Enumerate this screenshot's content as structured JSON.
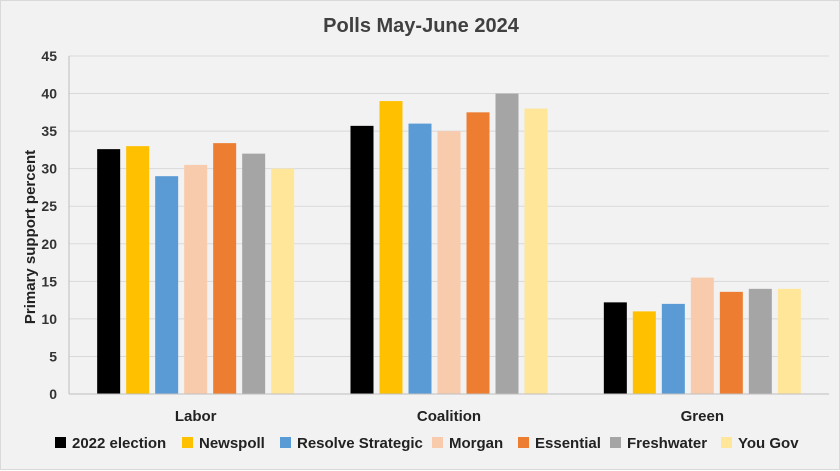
{
  "chart_data": {
    "type": "bar",
    "title": "Polls May-June 2024",
    "xlabel": "",
    "ylabel": "Primary support percent",
    "ylim": [
      0,
      45
    ],
    "yticks": [
      "0",
      "5",
      "10",
      "15",
      "20",
      "25",
      "30",
      "35",
      "40",
      "45"
    ],
    "grid": true,
    "legend_position": "bottom",
    "categories": [
      "Labor",
      "Coalition",
      "Green"
    ],
    "series": [
      {
        "name": "2022 election",
        "color": "#000000",
        "values": [
          32.6,
          35.7,
          12.2
        ]
      },
      {
        "name": "Newspoll",
        "color": "#ffc000",
        "values": [
          33,
          39,
          11
        ]
      },
      {
        "name": "Resolve Strategic",
        "color": "#5b9bd5",
        "values": [
          29,
          36,
          12
        ]
      },
      {
        "name": "Morgan",
        "color": "#f8cbad",
        "values": [
          30.5,
          35,
          15.5
        ]
      },
      {
        "name": "Essential",
        "color": "#ed7d31",
        "values": [
          33.4,
          37.5,
          13.6
        ]
      },
      {
        "name": "Freshwater",
        "color": "#a5a5a5",
        "values": [
          32,
          40,
          14
        ]
      },
      {
        "name": "You Gov",
        "color": "#ffe699",
        "values": [
          30,
          38,
          14
        ]
      }
    ]
  }
}
